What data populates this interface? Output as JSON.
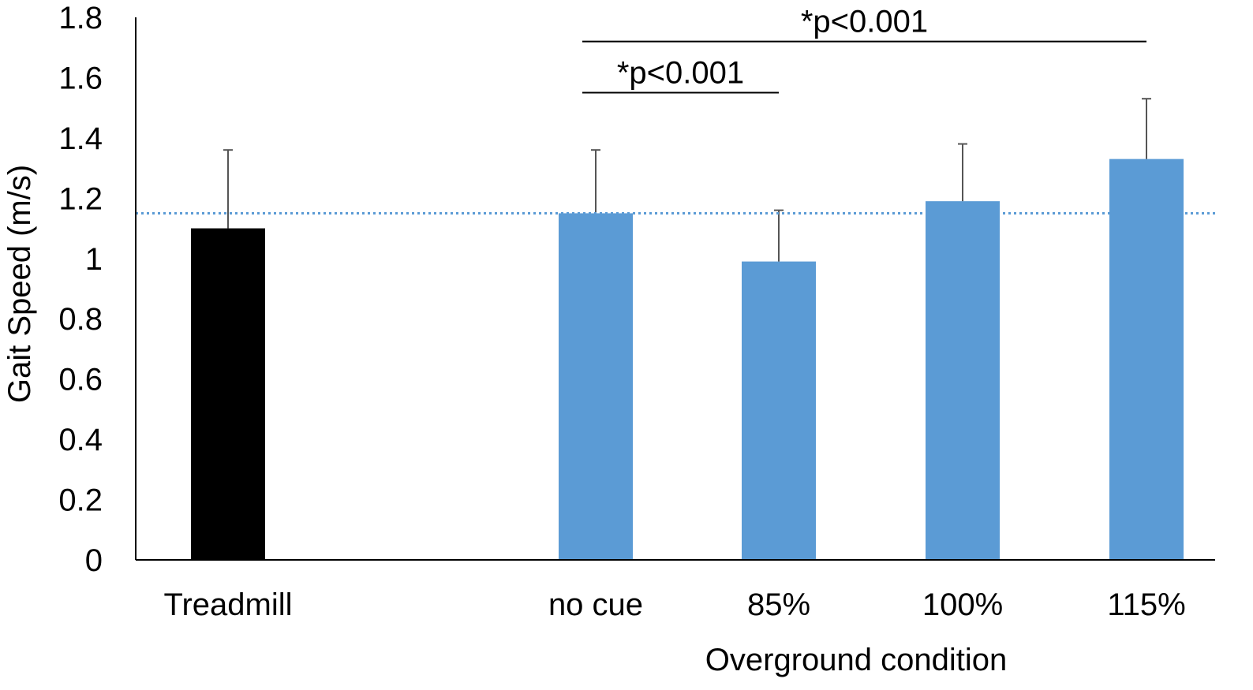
{
  "chart_data": {
    "type": "bar",
    "categories": [
      "Treadmill",
      "no cue",
      "85%",
      "100%",
      "115%"
    ],
    "series": [
      {
        "values": [
          1.1,
          1.15,
          0.99,
          1.19,
          1.33
        ],
        "error_upper": [
          0.26,
          0.21,
          0.17,
          0.19,
          0.2
        ],
        "colors": [
          "#000000",
          "#5b9bd5",
          "#5b9bd5",
          "#5b9bd5",
          "#5b9bd5"
        ]
      }
    ],
    "ylabel": "Gait Speed (m/s)",
    "xlabel": "Overground condition",
    "ylim": [
      0,
      1.8
    ],
    "yticks": [
      "0",
      "0.2",
      "0.4",
      "0.6",
      "0.8",
      "1",
      "1.2",
      "1.4",
      "1.6",
      "1.8"
    ],
    "reference_line": {
      "value": 1.15,
      "style": "dotted",
      "color": "#5b9bd5"
    },
    "annotations": [
      {
        "text": "*p<0.001",
        "from": "no cue",
        "to": "115%",
        "y": 1.72
      },
      {
        "text": "*p<0.001",
        "from": "no cue",
        "to": "85%",
        "y": 1.55
      }
    ],
    "grid": false,
    "legend": "none"
  }
}
